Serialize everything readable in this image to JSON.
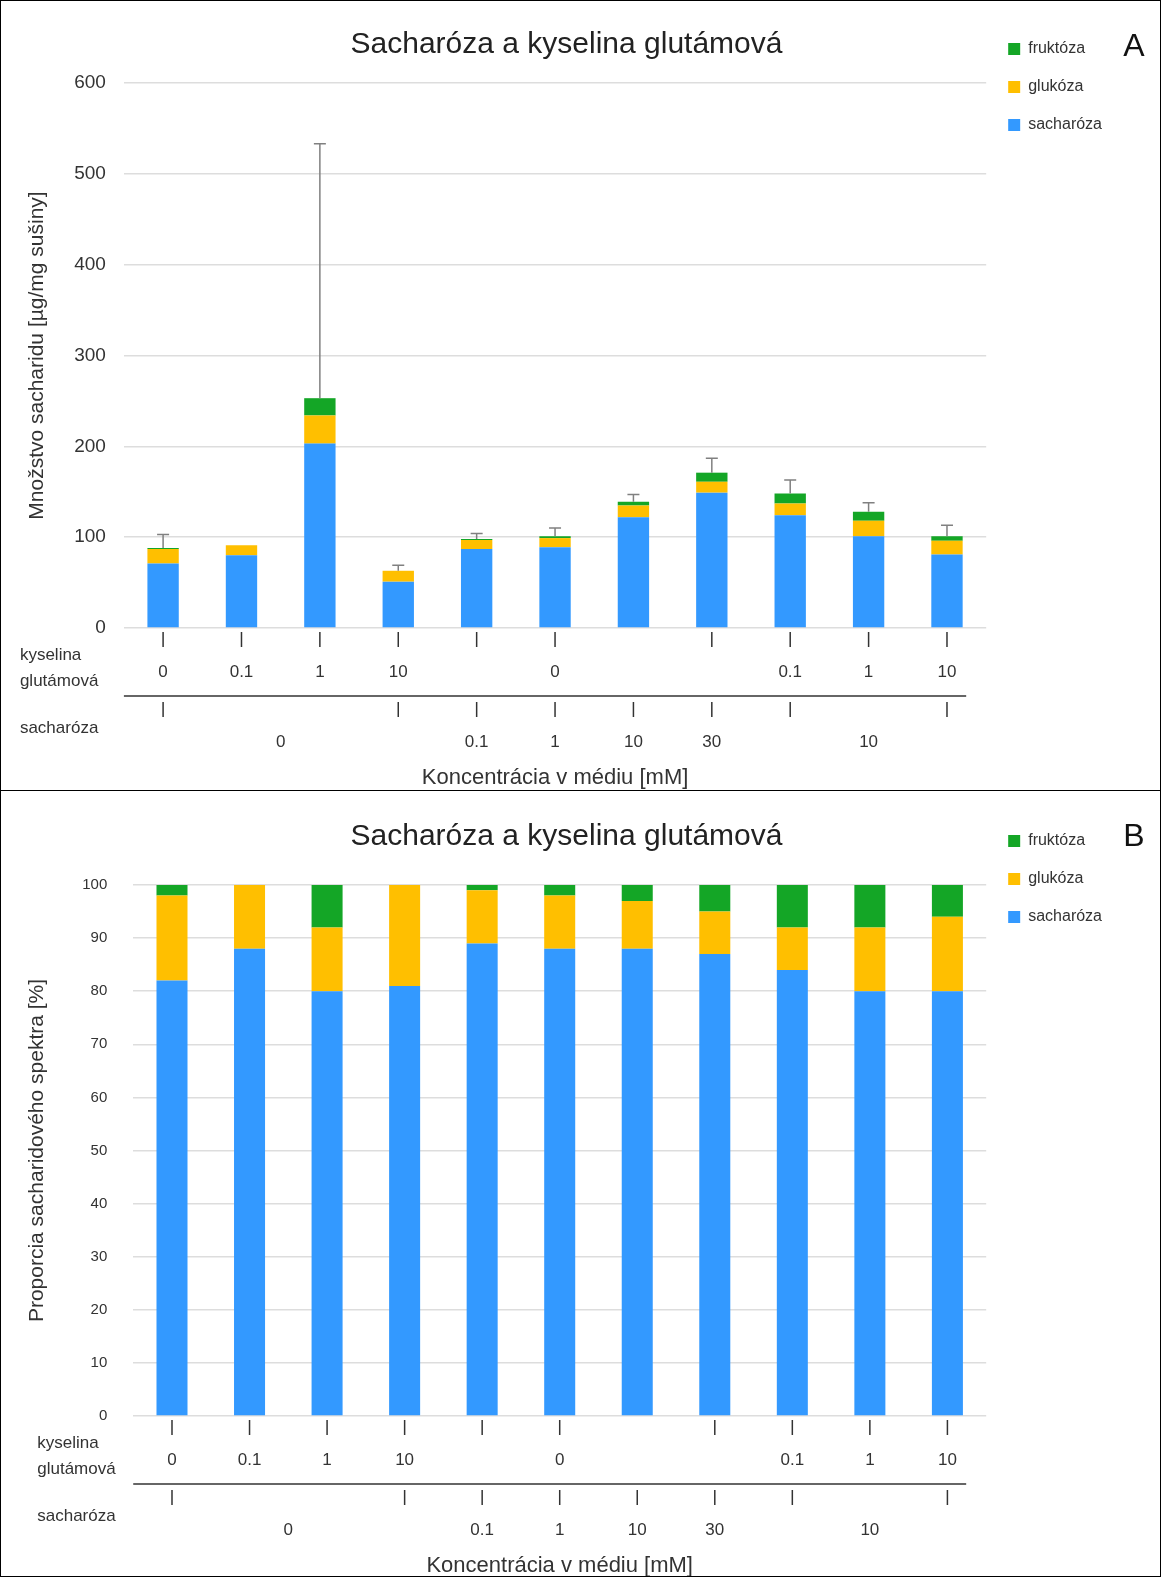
{
  "chart_data": [
    {
      "type": "bar",
      "title": "Sacharóza a kyselina glutámová",
      "ylabel": "Množstvo sacharidu [µg/mg sušiny]",
      "xlabel": "Koncentrácia v médiu [mM]",
      "annotations": [
        "A",
        "kyselina glutámová",
        "sacharóza",
        "0",
        "0.1",
        "1",
        "10",
        "30",
        "10"
      ],
      "categories": [
        "0",
        "0.1",
        "1",
        "10",
        null,
        "0",
        null,
        null,
        "0.1",
        "1",
        "10"
      ],
      "stacked": true,
      "ylim": [
        0,
        600
      ],
      "yticks": [
        0,
        100,
        200,
        300,
        400,
        500,
        600
      ],
      "grid": "y",
      "legend": "right",
      "series": [
        {
          "name": "sacharóza",
          "color": "#3399ff",
          "values": [
            71,
            80,
            203,
            51,
            87,
            89,
            122,
            149,
            124,
            101,
            81
          ]
        },
        {
          "name": "glukóza",
          "color": "#ffbf00",
          "values": [
            16,
            11,
            31,
            12,
            10,
            10,
            13,
            12,
            13,
            17,
            15
          ]
        },
        {
          "name": "fruktóza",
          "color": "#14a626",
          "values": [
            1,
            0,
            19,
            0,
            1,
            2,
            4,
            10,
            11,
            10,
            5
          ],
          "errors": [
            [
              88,
              103
            ],
            null,
            [
              253,
              533
            ],
            [
              63,
              69
            ],
            [
              98,
              104
            ],
            [
              101,
              110
            ],
            [
              139,
              147
            ],
            [
              171,
              187
            ],
            [
              148,
              163
            ],
            [
              128,
              138
            ],
            [
              101,
              113
            ]
          ]
        }
      ]
    },
    {
      "type": "bar",
      "title": "Sacharóza a kyselina glutámová",
      "ylabel": "Proporcia sacharidového spektra [%]",
      "xlabel": "Koncentrácia v médiu [mM]",
      "annotations": [
        "B",
        "kyselina glutámová",
        "sacharóza",
        "0",
        "0.1",
        "1",
        "10",
        "30",
        "10"
      ],
      "categories": [
        "0",
        "0.1",
        "1",
        "10",
        null,
        "0",
        null,
        null,
        "0.1",
        "1",
        "10"
      ],
      "stacked": true,
      "ylim": [
        0,
        100
      ],
      "yticks": [
        0,
        10,
        20,
        30,
        40,
        50,
        60,
        70,
        80,
        90,
        100
      ],
      "grid": "y",
      "legend": "right",
      "series": [
        {
          "name": "sacharóza",
          "color": "#3399ff",
          "values": [
            82,
            88,
            80,
            81,
            89,
            88,
            88,
            87,
            84,
            80,
            80
          ]
        },
        {
          "name": "glukóza",
          "color": "#ffbf00",
          "values": [
            16,
            12,
            12,
            19,
            10,
            10,
            9,
            8,
            8,
            12,
            14
          ]
        },
        {
          "name": "fruktóza",
          "color": "#14a626",
          "values": [
            2,
            0,
            8,
            0,
            1,
            2,
            3,
            5,
            8,
            8,
            6
          ]
        }
      ]
    }
  ]
}
